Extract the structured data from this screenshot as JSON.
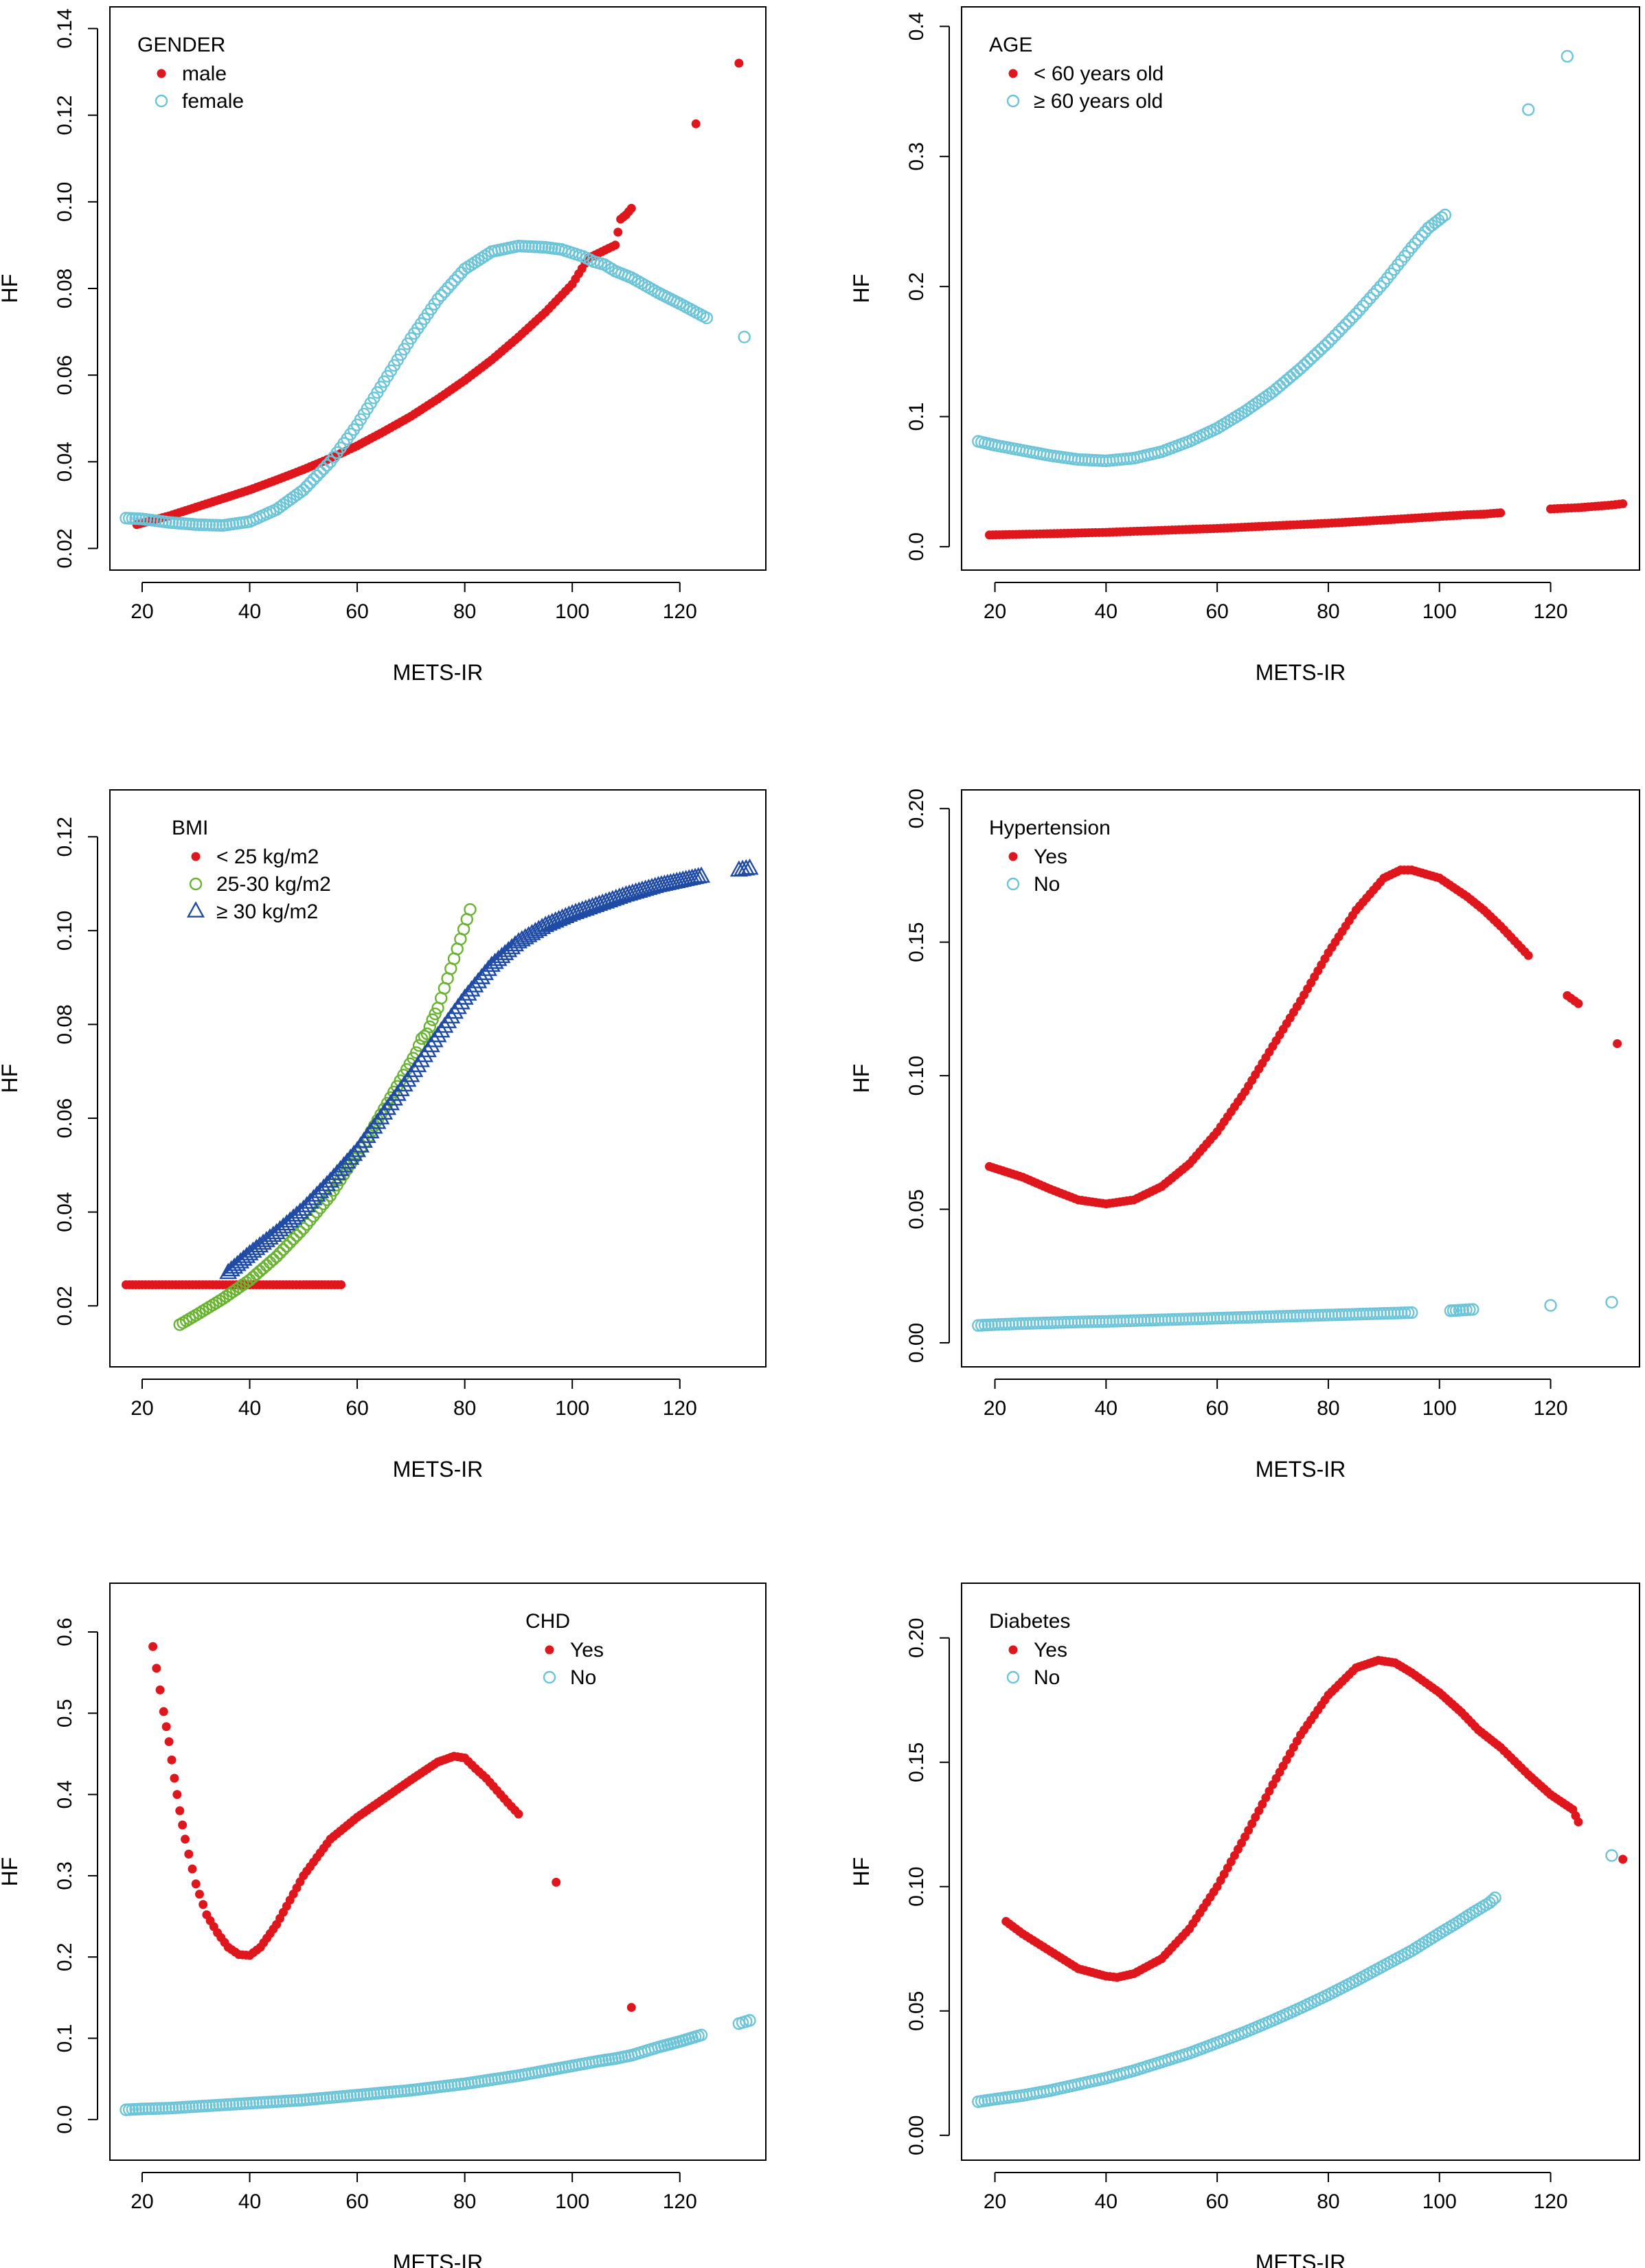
{
  "colors": {
    "red": "#e0161d",
    "cyan": "#6cc4d8",
    "green": "#6ab332",
    "blue": "#1f4ba5",
    "axis": "#000000"
  },
  "chart_data": [
    {
      "type": "scatter",
      "title": "",
      "xlabel": "METS-IR",
      "ylabel": "HF",
      "xlim": [
        14,
        136
      ],
      "ylim": [
        0.015,
        0.145
      ],
      "xticks": [
        "20",
        "40",
        "60",
        "80",
        "100",
        "120"
      ],
      "yticks": [
        "0.02",
        "0.04",
        "0.06",
        "0.08",
        "0.10",
        "0.12",
        "0.14"
      ],
      "legend": {
        "title": "GENDER",
        "placement": "top-left",
        "entries": [
          "male",
          "female"
        ]
      },
      "series": [
        {
          "name": "male",
          "marker": "dot",
          "color": "red",
          "x": [
            19,
            25,
            30,
            35,
            40,
            45,
            50,
            55,
            60,
            65,
            70,
            75,
            80,
            85,
            90,
            95,
            100,
            103,
            108,
            109,
            110,
            111,
            123,
            131
          ],
          "y": [
            0.0255,
            0.0275,
            0.0295,
            0.0315,
            0.0335,
            0.0358,
            0.0382,
            0.0408,
            0.0437,
            0.047,
            0.0505,
            0.0545,
            0.0588,
            0.0635,
            0.0688,
            0.0745,
            0.081,
            0.087,
            0.09,
            0.096,
            0.097,
            0.0985,
            0.118,
            0.132
          ]
        },
        {
          "name": "female",
          "marker": "circle",
          "color": "cyan",
          "x": [
            17,
            20,
            25,
            30,
            35,
            40,
            45,
            50,
            55,
            60,
            65,
            70,
            75,
            80,
            85,
            90,
            95,
            98,
            100,
            102,
            104,
            106,
            108,
            111,
            116,
            120,
            125,
            132
          ],
          "y": [
            0.027,
            0.0268,
            0.026,
            0.0255,
            0.0253,
            0.0262,
            0.029,
            0.0335,
            0.04,
            0.0485,
            0.0585,
            0.0685,
            0.0775,
            0.0845,
            0.0885,
            0.0898,
            0.0895,
            0.089,
            0.0882,
            0.0874,
            0.0862,
            0.0855,
            0.084,
            0.0825,
            0.079,
            0.0765,
            0.0732,
            0.0688
          ]
        }
      ]
    },
    {
      "type": "scatter",
      "title": "",
      "xlabel": "METS-IR",
      "ylabel": "HF",
      "xlim": [
        14,
        136
      ],
      "ylim": [
        -0.018,
        0.415
      ],
      "xticks": [
        "20",
        "40",
        "60",
        "80",
        "100",
        "120"
      ],
      "yticks": [
        "0.0",
        "0.1",
        "0.2",
        "0.3",
        "0.4"
      ],
      "legend": {
        "title": "AGE",
        "placement": "top-left",
        "entries": [
          "< 60 years old",
          "≥ 60 years old"
        ]
      },
      "series": [
        {
          "name": "< 60 years old",
          "marker": "dot",
          "color": "red",
          "x": [
            19,
            25,
            30,
            35,
            40,
            45,
            50,
            55,
            60,
            65,
            70,
            75,
            80,
            85,
            90,
            95,
            100,
            105,
            108,
            111,
            120,
            125,
            131,
            133
          ],
          "y": [
            0.009,
            0.0095,
            0.01,
            0.0105,
            0.011,
            0.0118,
            0.0125,
            0.0133,
            0.014,
            0.015,
            0.016,
            0.017,
            0.018,
            0.0192,
            0.0205,
            0.0218,
            0.0232,
            0.0245,
            0.025,
            0.026,
            0.029,
            0.03,
            0.032,
            0.033
          ]
        },
        {
          "name": "≥ 60 years old",
          "marker": "circle",
          "color": "cyan",
          "x": [
            17,
            20,
            25,
            30,
            35,
            40,
            45,
            50,
            55,
            60,
            65,
            70,
            75,
            80,
            85,
            90,
            95,
            98,
            101,
            116,
            123
          ],
          "y": [
            0.081,
            0.078,
            0.074,
            0.07,
            0.067,
            0.066,
            0.068,
            0.073,
            0.081,
            0.091,
            0.104,
            0.119,
            0.137,
            0.157,
            0.179,
            0.203,
            0.23,
            0.245,
            0.255,
            0.336,
            0.377
          ]
        }
      ]
    },
    {
      "type": "scatter",
      "title": "",
      "xlabel": "METS-IR",
      "ylabel": "HF",
      "xlim": [
        14,
        136
      ],
      "ylim": [
        0.007,
        0.13
      ],
      "xticks": [
        "20",
        "40",
        "60",
        "80",
        "100",
        "120"
      ],
      "yticks": [
        "0.02",
        "0.04",
        "0.06",
        "0.08",
        "0.10",
        "0.12"
      ],
      "legend": {
        "title": "BMI",
        "placement": "top-left",
        "entries": [
          "< 25 kg/m2",
          "25-30 kg/m2",
          "≥ 30 kg/m2"
        ]
      },
      "series": [
        {
          "name": "< 25 kg/m2",
          "marker": "dot",
          "color": "red",
          "x": [
            17,
            20,
            25,
            30,
            35,
            40,
            45,
            48,
            50,
            54,
            57
          ],
          "y": [
            0.0245,
            0.0245,
            0.0245,
            0.0245,
            0.0245,
            0.0245,
            0.0245,
            0.0245,
            0.0245,
            0.0245,
            0.0245
          ]
        },
        {
          "name": "25-30 kg/m2",
          "marker": "circle",
          "color": "green",
          "x": [
            27,
            30,
            35,
            40,
            45,
            50,
            55,
            60,
            62,
            65,
            68,
            71,
            72,
            73,
            74,
            75,
            81
          ],
          "y": [
            0.016,
            0.018,
            0.0215,
            0.0255,
            0.0305,
            0.0365,
            0.0435,
            0.0525,
            0.056,
            0.062,
            0.068,
            0.074,
            0.077,
            0.078,
            0.081,
            0.0835,
            0.1045
          ]
        },
        {
          "name": "≥ 30 kg/m2",
          "marker": "triangle",
          "color": "blue",
          "x": [
            36,
            40,
            45,
            50,
            55,
            60,
            65,
            70,
            75,
            80,
            85,
            90,
            95,
            100,
            105,
            110,
            116,
            120,
            124,
            131,
            133
          ],
          "y": [
            0.027,
            0.031,
            0.0355,
            0.0405,
            0.0465,
            0.053,
            0.061,
            0.069,
            0.0775,
            0.0855,
            0.0925,
            0.0975,
            0.101,
            0.1035,
            0.1055,
            0.1075,
            0.1095,
            0.1105,
            0.1115,
            0.1128,
            0.1132
          ]
        }
      ]
    },
    {
      "type": "scatter",
      "title": "",
      "xlabel": "METS-IR",
      "ylabel": "HF",
      "xlim": [
        14,
        136
      ],
      "ylim": [
        -0.009,
        0.207
      ],
      "xticks": [
        "20",
        "40",
        "60",
        "80",
        "100",
        "120"
      ],
      "yticks": [
        "0.00",
        "0.05",
        "0.10",
        "0.15",
        "0.20"
      ],
      "legend": {
        "title": "Hypertension",
        "placement": "top-left",
        "entries": [
          "Yes",
          "No"
        ]
      },
      "series": [
        {
          "name": "Yes",
          "marker": "dot",
          "color": "red",
          "x": [
            19,
            25,
            30,
            35,
            40,
            45,
            50,
            55,
            60,
            65,
            70,
            75,
            80,
            85,
            90,
            93,
            95,
            100,
            105,
            108,
            111,
            116,
            123,
            125,
            132
          ],
          "y": [
            0.066,
            0.062,
            0.0575,
            0.0535,
            0.052,
            0.0535,
            0.0585,
            0.067,
            0.079,
            0.094,
            0.111,
            0.128,
            0.146,
            0.162,
            0.174,
            0.177,
            0.177,
            0.174,
            0.167,
            0.162,
            0.156,
            0.145,
            0.13,
            0.127,
            0.112
          ]
        },
        {
          "name": "No",
          "marker": "circle",
          "color": "cyan",
          "x": [
            17,
            20,
            25,
            30,
            35,
            40,
            45,
            50,
            55,
            60,
            65,
            70,
            75,
            80,
            85,
            90,
            95,
            102,
            103,
            106,
            120,
            131
          ],
          "y": [
            0.0065,
            0.0068,
            0.0072,
            0.0075,
            0.0078,
            0.008,
            0.0083,
            0.0086,
            0.0089,
            0.0092,
            0.0095,
            0.0098,
            0.0101,
            0.0104,
            0.0107,
            0.011,
            0.0113,
            0.012,
            0.0121,
            0.0125,
            0.014,
            0.0152
          ]
        }
      ]
    },
    {
      "type": "scatter",
      "title": "",
      "xlabel": "METS-IR",
      "ylabel": "HF",
      "xlim": [
        14,
        136
      ],
      "ylim": [
        -0.05,
        0.66
      ],
      "xticks": [
        "20",
        "40",
        "60",
        "80",
        "100",
        "120"
      ],
      "yticks": [
        "0.0",
        "0.1",
        "0.2",
        "0.3",
        "0.4",
        "0.5",
        "0.6"
      ],
      "legend": {
        "title": "CHD",
        "placement": "top-right",
        "entries": [
          "Yes",
          "No"
        ]
      },
      "series": [
        {
          "name": "Yes",
          "marker": "dot",
          "color": "red",
          "x": [
            22,
            24,
            25,
            26,
            27,
            28,
            30,
            32,
            34,
            36,
            38,
            40,
            42,
            45,
            50,
            55,
            60,
            65,
            70,
            75,
            78,
            80,
            82,
            84,
            86,
            88,
            90,
            97,
            111
          ],
          "y": [
            0.582,
            0.502,
            0.465,
            0.42,
            0.38,
            0.345,
            0.29,
            0.252,
            0.23,
            0.212,
            0.203,
            0.202,
            0.212,
            0.24,
            0.3,
            0.345,
            0.372,
            0.395,
            0.418,
            0.44,
            0.447,
            0.445,
            0.432,
            0.42,
            0.405,
            0.39,
            0.376,
            0.292,
            0.138
          ]
        },
        {
          "name": "No",
          "marker": "circle",
          "color": "cyan",
          "x": [
            17,
            20,
            25,
            30,
            35,
            40,
            45,
            50,
            55,
            60,
            65,
            70,
            75,
            80,
            85,
            90,
            95,
            100,
            105,
            108,
            111,
            116,
            120,
            124,
            131,
            133
          ],
          "y": [
            0.012,
            0.013,
            0.014,
            0.016,
            0.018,
            0.02,
            0.022,
            0.024,
            0.027,
            0.03,
            0.033,
            0.036,
            0.04,
            0.044,
            0.049,
            0.054,
            0.06,
            0.066,
            0.072,
            0.075,
            0.079,
            0.089,
            0.096,
            0.104,
            0.118,
            0.122
          ]
        }
      ]
    },
    {
      "type": "scatter",
      "title": "",
      "xlabel": "METS-IR",
      "ylabel": "HF",
      "xlim": [
        14,
        136
      ],
      "ylim": [
        -0.01,
        0.222
      ],
      "xticks": [
        "20",
        "40",
        "60",
        "80",
        "100",
        "120"
      ],
      "yticks": [
        "0.00",
        "0.05",
        "0.10",
        "0.15",
        "0.20"
      ],
      "legend": {
        "title": "Diabetes",
        "placement": "top-left",
        "entries": [
          "Yes",
          "No"
        ]
      },
      "series": [
        {
          "name": "Yes",
          "marker": "dot",
          "color": "red",
          "x": [
            22,
            25,
            30,
            35,
            40,
            42,
            45,
            50,
            55,
            60,
            65,
            70,
            75,
            80,
            85,
            89,
            92,
            95,
            100,
            104,
            107,
            111,
            116,
            120,
            124,
            125,
            133
          ],
          "y": [
            0.086,
            0.081,
            0.074,
            0.067,
            0.064,
            0.0635,
            0.065,
            0.071,
            0.083,
            0.1,
            0.12,
            0.141,
            0.161,
            0.177,
            0.188,
            0.191,
            0.19,
            0.186,
            0.178,
            0.17,
            0.163,
            0.156,
            0.145,
            0.137,
            0.131,
            0.126,
            0.111
          ]
        },
        {
          "name": "No",
          "marker": "circle",
          "color": "cyan",
          "x": [
            17,
            20,
            25,
            30,
            35,
            40,
            45,
            50,
            55,
            60,
            65,
            70,
            75,
            80,
            85,
            90,
            95,
            100,
            103,
            106,
            109,
            110,
            131
          ],
          "y": [
            0.0135,
            0.0145,
            0.016,
            0.018,
            0.0205,
            0.023,
            0.026,
            0.0295,
            0.033,
            0.0372,
            0.0415,
            0.0462,
            0.0512,
            0.0565,
            0.0622,
            0.0682,
            0.0742,
            0.0812,
            0.0852,
            0.0895,
            0.0935,
            0.0955,
            0.1125
          ]
        }
      ]
    }
  ]
}
